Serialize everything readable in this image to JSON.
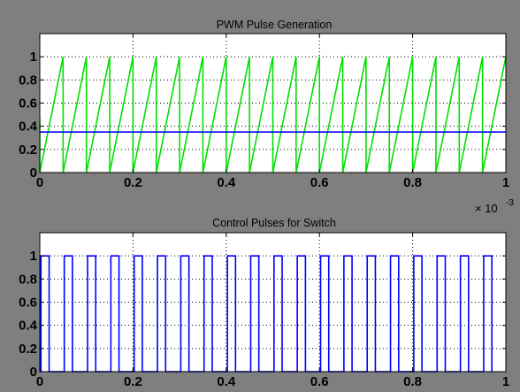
{
  "figure": {
    "background": "#7f7f7f",
    "axes_background": "#ffffff"
  },
  "chart_data": [
    {
      "type": "line",
      "title": "PWM Pulse Generation",
      "xlabel": "",
      "ylabel": "",
      "xlim": [
        0,
        1
      ],
      "ylim": [
        0,
        1.2
      ],
      "x_ticks": [
        "0",
        "0.2",
        "0.4",
        "0.6",
        "0.8",
        "1"
      ],
      "y_ticks": [
        "0",
        "0.2",
        "0.4",
        "0.6",
        "0.8",
        "1"
      ],
      "x_exponent": {
        "base": "× 10",
        "power": "-3"
      },
      "grid": true,
      "series": [
        {
          "kind": "sawtooth",
          "color": "#00e000",
          "x_unit_scale": 0.001,
          "period": 0.05,
          "min": 0,
          "max": 1,
          "start_value": 0.47
        },
        {
          "kind": "constant",
          "color": "#0000ff",
          "value": 0.35
        }
      ]
    },
    {
      "type": "line",
      "title": "Control Pulses for Switch",
      "xlabel": "",
      "ylabel": "",
      "xlim": [
        0,
        1
      ],
      "ylim": [
        0,
        1.2
      ],
      "x_ticks": [
        "0",
        "0.2",
        "0.4",
        "0.6",
        "0.8",
        "1"
      ],
      "y_ticks": [
        "0",
        "0.2",
        "0.4",
        "0.6",
        "0.8",
        "1"
      ],
      "grid": true,
      "series": [
        {
          "kind": "pulse",
          "color": "#0000ff",
          "period": 0.05,
          "duty_cycle": 0.35,
          "high": 1,
          "low": 0,
          "line_value_at_end": 1
        }
      ]
    }
  ]
}
